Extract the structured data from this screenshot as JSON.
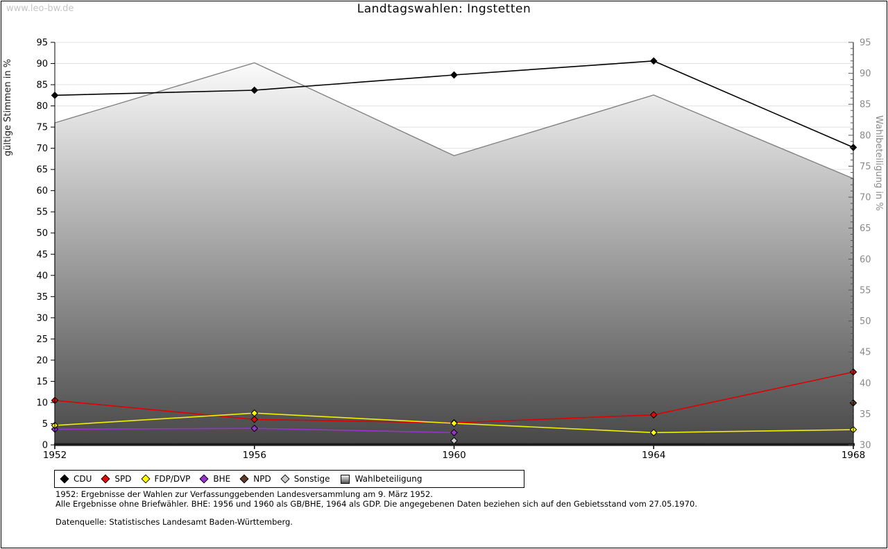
{
  "page": {
    "watermark": "www.leo-bw.de",
    "title": "Landtagswahlen: Ingstetten"
  },
  "chart_data": {
    "type": "line",
    "title": "Landtagswahlen: Ingstetten",
    "x": [
      1952,
      1956,
      1960,
      1964,
      1968
    ],
    "x_tick_labels": [
      "1952",
      "1956",
      "1960",
      "1964",
      "1968"
    ],
    "left_axis": {
      "label": "gültige Stimmen in %",
      "min": 0,
      "max": 95,
      "tick_step": 5,
      "tick_color": "#000000"
    },
    "right_axis": {
      "label": "Wahlbeteiligung in %",
      "min": 30,
      "max": 95,
      "tick_step": 5,
      "minor_step": 1,
      "tick_color": "#8a8a8a"
    },
    "grid": true,
    "grid_color": "#e0e0e0",
    "legend_position": "bottom",
    "series": [
      {
        "name": "CDU",
        "axis": "left",
        "line_color": "#000000",
        "marker_color": "#000000",
        "values": [
          82.5,
          83.7,
          87.3,
          90.6,
          70.2
        ]
      },
      {
        "name": "SPD",
        "axis": "left",
        "line_color": "#e00000",
        "marker_color": "#dd0c0c",
        "values": [
          10.5,
          6.0,
          5.2,
          7.1,
          17.2
        ]
      },
      {
        "name": "FDP/DVP",
        "axis": "left",
        "line_color": "#f0f000",
        "marker_color": "#ffff00",
        "values": [
          4.6,
          7.5,
          5.1,
          2.9,
          3.6
        ]
      },
      {
        "name": "BHE",
        "axis": "left",
        "line_color": "#9933cc",
        "marker_color": "#9933cc",
        "values": [
          3.7,
          3.9,
          2.9,
          null,
          null
        ]
      },
      {
        "name": "NPD",
        "axis": "left",
        "line_color": "#5e3a28",
        "marker_color": "#5e3a28",
        "values": [
          null,
          null,
          null,
          null,
          9.9
        ]
      },
      {
        "name": "Sonstige",
        "axis": "left",
        "line_color": "#c8c8c8",
        "marker_color": "#cccccc",
        "values": [
          null,
          null,
          1.0,
          null,
          null
        ]
      }
    ],
    "area_series": {
      "name": "Wahlbeteiligung",
      "axis": "right",
      "values": [
        82.0,
        91.7,
        76.7,
        86.5,
        73.0
      ],
      "fill_top": "#fbfbfb",
      "fill_bottom": "#474747",
      "stroke": "#828282"
    }
  },
  "legend": {
    "items": [
      {
        "label": "CDU",
        "shape": "diamond",
        "color": "#000000"
      },
      {
        "label": "SPD",
        "shape": "diamond",
        "color": "#dd0c0c"
      },
      {
        "label": "FDP/DVP",
        "shape": "diamond",
        "color": "#ffff00"
      },
      {
        "label": "BHE",
        "shape": "diamond",
        "color": "#9933cc"
      },
      {
        "label": "NPD",
        "shape": "diamond",
        "color": "#5e3a28"
      },
      {
        "label": "Sonstige",
        "shape": "diamond",
        "color": "#cccccc"
      },
      {
        "label": "Wahlbeteiligung",
        "shape": "gradient-square",
        "color": "#aaaaaa"
      }
    ]
  },
  "footnotes": {
    "line1": "1952: Ergebnisse der Wahlen zur Verfassunggebenden Landesversammlung am 9. März 1952.",
    "line2": "Alle Ergebnisse ohne Briefwähler. BHE: 1956 und 1960 als GB/BHE, 1964 als GDP. Die angegebenen Daten beziehen sich auf den Gebietsstand vom 27.05.1970.",
    "source": "Datenquelle: Statistisches Landesamt Baden-Württemberg."
  }
}
